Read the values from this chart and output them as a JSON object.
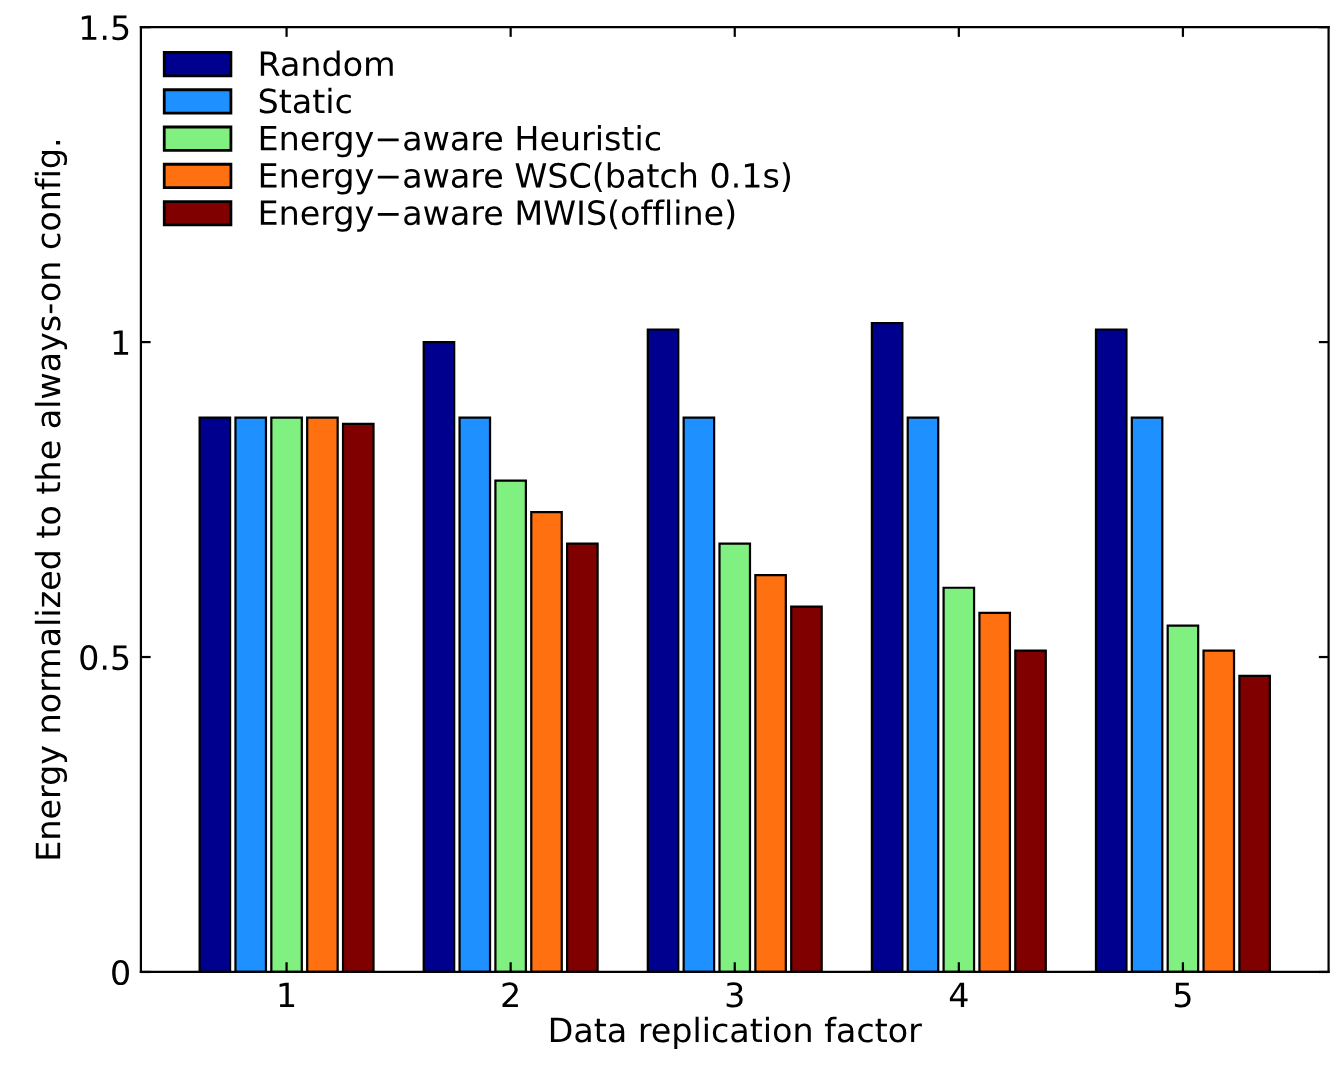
{
  "chart_data": {
    "type": "bar",
    "xlabel": "Data replication factor",
    "ylabel": "Energy normalized to the always-on config.",
    "categories": [
      "1",
      "2",
      "3",
      "4",
      "5"
    ],
    "series": [
      {
        "name": "Random",
        "color": "#00008f",
        "values": [
          0.88,
          1.0,
          1.02,
          1.03,
          1.02
        ]
      },
      {
        "name": "Static",
        "color": "#1e90ff",
        "values": [
          0.88,
          0.88,
          0.88,
          0.88,
          0.88
        ]
      },
      {
        "name": "Energy−aware Heuristic",
        "color": "#80f080",
        "values": [
          0.88,
          0.78,
          0.68,
          0.61,
          0.55
        ]
      },
      {
        "name": "Energy−aware WSC(batch 0.1s)",
        "color": "#ff7010",
        "values": [
          0.88,
          0.73,
          0.63,
          0.57,
          0.51
        ]
      },
      {
        "name": "Energy−aware MWIS(offline)",
        "color": "#800000",
        "values": [
          0.87,
          0.68,
          0.58,
          0.51,
          0.47
        ]
      }
    ],
    "ylim": [
      0,
      1.5
    ],
    "yticks": [
      0,
      0.5,
      1,
      1.5
    ],
    "grid": false,
    "legend": "top left"
  }
}
